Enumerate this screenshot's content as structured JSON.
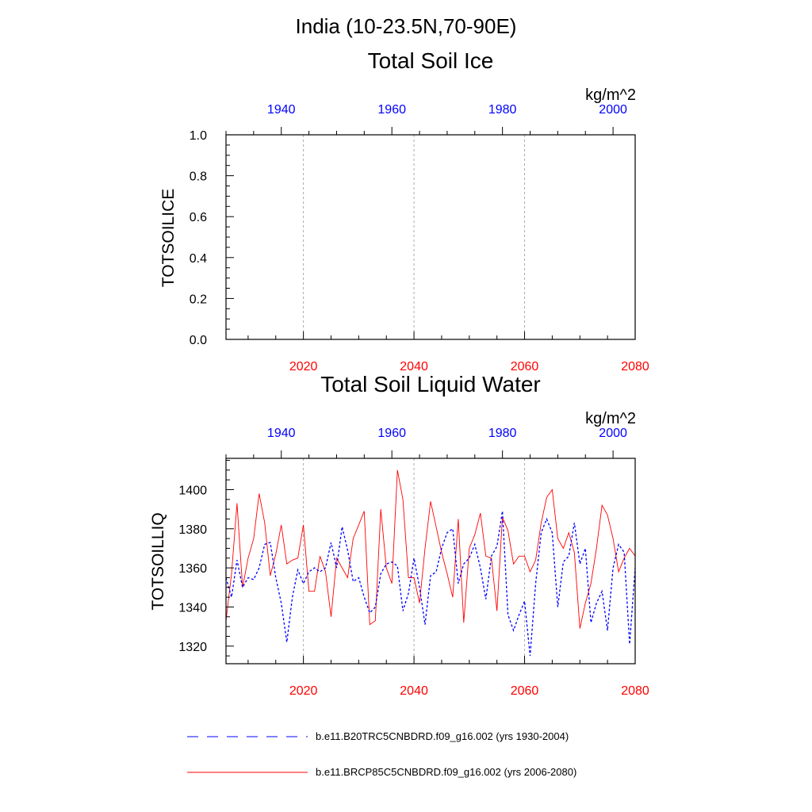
{
  "figure": {
    "title": "India (10-23.5N,70-90E)"
  },
  "colors": {
    "future": "#ff0000",
    "historical": "#0000ff",
    "gridline": "#aaaaaa"
  },
  "chart_data": [
    {
      "type": "line",
      "title": "Total Soil Ice",
      "units": "kg/m^2",
      "ylabel": "TOTSOILICE",
      "xlabel": "",
      "bottom_axis": {
        "range": [
          2006,
          2080
        ],
        "ticks": [
          "2020",
          "2040",
          "2060",
          "2080"
        ],
        "color": "#ff0000"
      },
      "top_axis": {
        "range": [
          1930,
          2004
        ],
        "ticks": [
          "1940",
          "1960",
          "1980",
          "2000"
        ],
        "color": "#0000ff"
      },
      "ylim": [
        0,
        1
      ],
      "yticks": [
        "0.0",
        "0.2",
        "0.4",
        "0.6",
        "0.8",
        "1.0"
      ],
      "grid": "vertical dashed at bottom-axis ticks",
      "series": []
    },
    {
      "type": "line",
      "title": "Total Soil Liquid Water",
      "units": "kg/m^2",
      "ylabel": "TOTSOILLIQ",
      "xlabel": "",
      "bottom_axis": {
        "range": [
          2006,
          2080
        ],
        "ticks": [
          "2020",
          "2040",
          "2060",
          "2080"
        ],
        "color": "#ff0000"
      },
      "top_axis": {
        "range": [
          1930,
          2004
        ],
        "ticks": [
          "1940",
          "1960",
          "1980",
          "2000"
        ],
        "color": "#0000ff"
      },
      "ylim": [
        1311,
        1416
      ],
      "yticks": [
        "1320",
        "1340",
        "1360",
        "1380",
        "1400"
      ],
      "grid": "vertical dashed at bottom-axis ticks",
      "series": [
        {
          "name": "b.e11.BRCP85C5CNBDRD.f09_g16.002 (yrs 2006-2080)",
          "axis": "bottom",
          "style": "solid",
          "color": "#ff0000",
          "x_start": 2006,
          "values": [
            1333,
            1357,
            1393,
            1350,
            1365,
            1375,
            1398,
            1383,
            1356,
            1367,
            1382,
            1362,
            1364,
            1365,
            1382,
            1348,
            1348,
            1366,
            1358,
            1335,
            1365,
            1360,
            1355,
            1375,
            1382,
            1389,
            1331,
            1333,
            1390,
            1360,
            1352,
            1410,
            1395,
            1355,
            1355,
            1342,
            1370,
            1394,
            1381,
            1368,
            1357,
            1345,
            1385,
            1332,
            1370,
            1377,
            1388,
            1366,
            1365,
            1338,
            1386,
            1379,
            1362,
            1366,
            1366,
            1358,
            1364,
            1383,
            1396,
            1400,
            1375,
            1370,
            1378,
            1368,
            1329,
            1342,
            1352,
            1370,
            1392,
            1387,
            1375,
            1358,
            1365,
            1370,
            1366
          ]
        },
        {
          "name": "b.e11.B20TRC5CNBDRD.f09_g16.002 (yrs 1930-2004)",
          "axis": "top",
          "style": "dashed",
          "color": "#0000ff",
          "x_start": 1930,
          "values": [
            1355,
            1345,
            1364,
            1350,
            1355,
            1354,
            1360,
            1372,
            1373,
            1355,
            1342,
            1322,
            1345,
            1359,
            1352,
            1358,
            1360,
            1358,
            1360,
            1373,
            1360,
            1381,
            1369,
            1353,
            1355,
            1345,
            1337,
            1340,
            1357,
            1362,
            1363,
            1361,
            1338,
            1347,
            1365,
            1350,
            1331,
            1356,
            1358,
            1370,
            1378,
            1380,
            1352,
            1362,
            1365,
            1372,
            1360,
            1344,
            1366,
            1371,
            1389,
            1336,
            1328,
            1336,
            1343,
            1315,
            1352,
            1378,
            1385,
            1378,
            1340,
            1363,
            1366,
            1383,
            1362,
            1370,
            1332,
            1342,
            1348,
            1328,
            1360,
            1372,
            1368,
            1321,
            1360
          ]
        }
      ]
    }
  ],
  "legend": {
    "placement": "bottom",
    "entries": [
      {
        "label": "b.e11.B20TRC5CNBDRD.f09_g16.002 (yrs 1930-2004)",
        "style": "dashed",
        "color": "#0000ff"
      },
      {
        "label": "b.e11.BRCP85C5CNBDRD.f09_g16.002 (yrs 2006-2080)",
        "style": "solid",
        "color": "#ff0000"
      }
    ]
  }
}
